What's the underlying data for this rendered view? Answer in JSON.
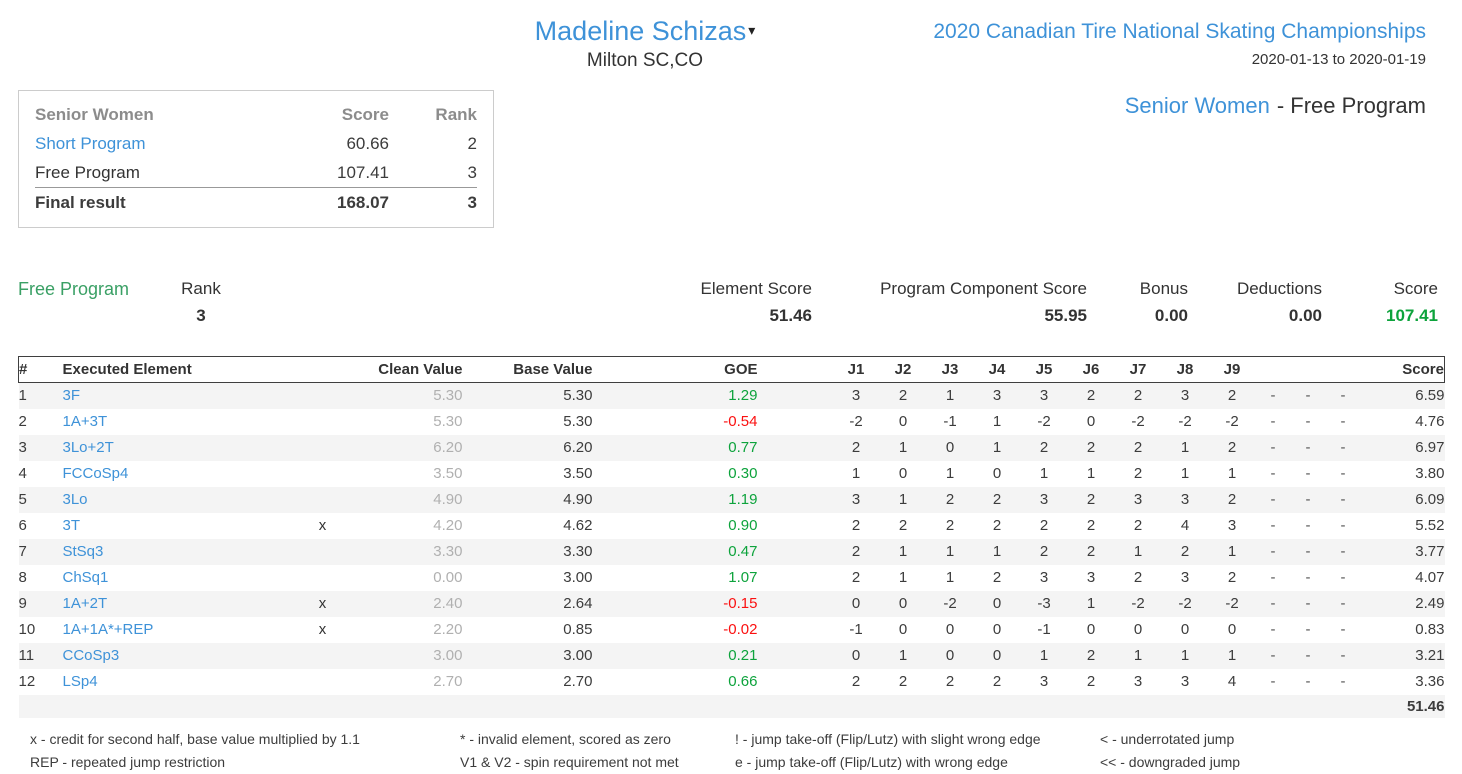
{
  "header": {
    "skater_name": "Madeline Schizas",
    "club": "Milton SC,CO",
    "event_title": "2020 Canadian Tire National Skating Championships",
    "event_dates": "2020-01-13 to 2020-01-19",
    "category": "Senior Women",
    "segment_suffix": "- Free Program"
  },
  "summary_card": {
    "title": "Senior Women",
    "col_score": "Score",
    "col_rank": "Rank",
    "rows": [
      {
        "label": "Short Program",
        "score": "60.66",
        "rank": "2"
      },
      {
        "label": "Free Program",
        "score": "107.41",
        "rank": "3"
      }
    ],
    "final": {
      "label": "Final result",
      "score": "168.07",
      "rank": "3"
    }
  },
  "segment_header": {
    "title": "Free Program",
    "rank_label": "Rank",
    "rank_value": "3",
    "element_score_label": "Element Score",
    "element_score": "51.46",
    "pcs_label": "Program Component Score",
    "pcs": "55.95",
    "bonus_label": "Bonus",
    "bonus": "0.00",
    "deductions_label": "Deductions",
    "deductions": "0.00",
    "score_label": "Score",
    "score": "107.41"
  },
  "table": {
    "headers": {
      "num": "#",
      "element": "Executed Element",
      "clean": "Clean Value",
      "base": "Base Value",
      "goe": "GOE",
      "judges": [
        "J1",
        "J2",
        "J3",
        "J4",
        "J5",
        "J6",
        "J7",
        "J8",
        "J9"
      ],
      "score": "Score"
    },
    "rows": [
      {
        "num": "1",
        "element": "3F",
        "x": "",
        "clean": "5.30",
        "base": "5.30",
        "goe": "1.29",
        "judges": [
          "3",
          "2",
          "1",
          "3",
          "3",
          "2",
          "2",
          "3",
          "2",
          "-",
          "-",
          "-"
        ],
        "score": "6.59"
      },
      {
        "num": "2",
        "element": "1A+3T",
        "x": "",
        "clean": "5.30",
        "base": "5.30",
        "goe": "-0.54",
        "judges": [
          "-2",
          "0",
          "-1",
          "1",
          "-2",
          "0",
          "-2",
          "-2",
          "-2",
          "-",
          "-",
          "-"
        ],
        "score": "4.76"
      },
      {
        "num": "3",
        "element": "3Lo+2T",
        "x": "",
        "clean": "6.20",
        "base": "6.20",
        "goe": "0.77",
        "judges": [
          "2",
          "1",
          "0",
          "1",
          "2",
          "2",
          "2",
          "1",
          "2",
          "-",
          "-",
          "-"
        ],
        "score": "6.97"
      },
      {
        "num": "4",
        "element": "FCCoSp4",
        "x": "",
        "clean": "3.50",
        "base": "3.50",
        "goe": "0.30",
        "judges": [
          "1",
          "0",
          "1",
          "0",
          "1",
          "1",
          "2",
          "1",
          "1",
          "-",
          "-",
          "-"
        ],
        "score": "3.80"
      },
      {
        "num": "5",
        "element": "3Lo",
        "x": "",
        "clean": "4.90",
        "base": "4.90",
        "goe": "1.19",
        "judges": [
          "3",
          "1",
          "2",
          "2",
          "3",
          "2",
          "3",
          "3",
          "2",
          "-",
          "-",
          "-"
        ],
        "score": "6.09"
      },
      {
        "num": "6",
        "element": "3T",
        "x": "x",
        "clean": "4.20",
        "base": "4.62",
        "goe": "0.90",
        "judges": [
          "2",
          "2",
          "2",
          "2",
          "2",
          "2",
          "2",
          "4",
          "3",
          "-",
          "-",
          "-"
        ],
        "score": "5.52"
      },
      {
        "num": "7",
        "element": "StSq3",
        "x": "",
        "clean": "3.30",
        "base": "3.30",
        "goe": "0.47",
        "judges": [
          "2",
          "1",
          "1",
          "1",
          "2",
          "2",
          "1",
          "2",
          "1",
          "-",
          "-",
          "-"
        ],
        "score": "3.77"
      },
      {
        "num": "8",
        "element": "ChSq1",
        "x": "",
        "clean": "0.00",
        "base": "3.00",
        "goe": "1.07",
        "judges": [
          "2",
          "1",
          "1",
          "2",
          "3",
          "3",
          "2",
          "3",
          "2",
          "-",
          "-",
          "-"
        ],
        "score": "4.07"
      },
      {
        "num": "9",
        "element": "1A+2T",
        "x": "x",
        "clean": "2.40",
        "base": "2.64",
        "goe": "-0.15",
        "judges": [
          "0",
          "0",
          "-2",
          "0",
          "-3",
          "1",
          "-2",
          "-2",
          "-2",
          "-",
          "-",
          "-"
        ],
        "score": "2.49"
      },
      {
        "num": "10",
        "element": "1A+1A*+REP",
        "x": "x",
        "clean": "2.20",
        "base": "0.85",
        "goe": "-0.02",
        "judges": [
          "-1",
          "0",
          "0",
          "0",
          "-1",
          "0",
          "0",
          "0",
          "0",
          "-",
          "-",
          "-"
        ],
        "score": "0.83"
      },
      {
        "num": "11",
        "element": "CCoSp3",
        "x": "",
        "clean": "3.00",
        "base": "3.00",
        "goe": "0.21",
        "judges": [
          "0",
          "1",
          "0",
          "0",
          "1",
          "2",
          "1",
          "1",
          "1",
          "-",
          "-",
          "-"
        ],
        "score": "3.21"
      },
      {
        "num": "12",
        "element": "LSp4",
        "x": "",
        "clean": "2.70",
        "base": "2.70",
        "goe": "0.66",
        "judges": [
          "2",
          "2",
          "2",
          "2",
          "3",
          "2",
          "3",
          "3",
          "4",
          "-",
          "-",
          "-"
        ],
        "score": "3.36"
      }
    ],
    "total": "51.46"
  },
  "footnotes": [
    [
      "x - credit for second half, base value multiplied by 1.1",
      "* - invalid element, scored as zero",
      "! - jump take-off (Flip/Lutz) with slight wrong edge",
      "< - underrotated jump"
    ],
    [
      "REP - repeated jump restriction",
      "V1 & V2 - spin requirement not met",
      "e - jump take-off (Flip/Lutz) with wrong edge",
      "<< - downgraded jump"
    ]
  ],
  "colors": {
    "link_blue": "#3e92d8",
    "section_green": "#3aa065",
    "value_green": "#0da33c",
    "value_red": "#fb1010",
    "muted_gray": "#b0b0b0"
  }
}
